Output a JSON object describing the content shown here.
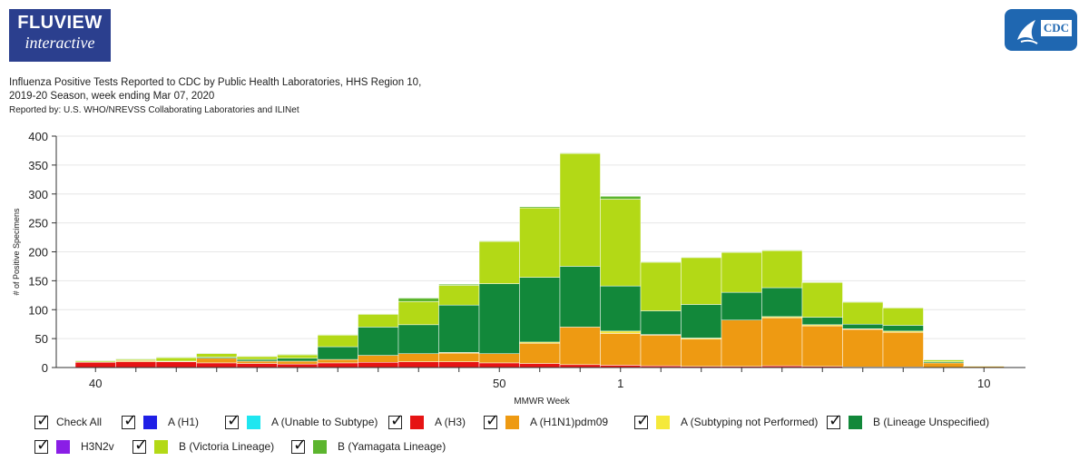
{
  "header": {
    "logo_top": "FLUVIEW",
    "logo_bottom": "interactive",
    "cdc_logo_text": "CDC"
  },
  "titles": {
    "line1": "Influenza Positive Tests Reported to CDC by Public Health Laboratories, HHS Region 10,",
    "line2": "2019-20 Season, week ending Mar 07, 2020",
    "line3": "Reported by: U.S. WHO/NREVSS Collaborating Laboratories and ILINet"
  },
  "legend": {
    "check_all": "Check All",
    "items": [
      {
        "label": "A (H1)",
        "color": "#1f1fe6"
      },
      {
        "label": "A (Unable to Subtype)",
        "color": "#1fe6f0"
      },
      {
        "label": "A (H3)",
        "color": "#e61414"
      },
      {
        "label": "A (H1N1)pdm09",
        "color": "#ee9a12"
      },
      {
        "label": "A (Subtyping not Performed)",
        "color": "#f5e93a"
      },
      {
        "label": "B (Lineage Unspecified)",
        "color": "#12883a"
      },
      {
        "label": "H3N2v",
        "color": "#8a1ee6"
      },
      {
        "label": "B (Victoria Lineage)",
        "color": "#b3d916"
      },
      {
        "label": "B (Yamagata Lineage)",
        "color": "#5cb52e"
      }
    ]
  },
  "chart_data": {
    "type": "bar",
    "stacked": true,
    "xlabel": "MMWR Week",
    "ylabel": "# of Positive Specimens",
    "ylim": [
      0,
      400
    ],
    "yticks": [
      0,
      50,
      100,
      150,
      200,
      250,
      300,
      350,
      400
    ],
    "categories": [
      "40",
      "41",
      "42",
      "43",
      "44",
      "45",
      "46",
      "47",
      "48",
      "49",
      "50",
      "51",
      "52",
      "1",
      "2",
      "3",
      "4",
      "5",
      "6",
      "7",
      "8",
      "9",
      "10"
    ],
    "xtick_labels": [
      "40",
      "50",
      "1",
      "10"
    ],
    "grid": true,
    "series": [
      {
        "name": "A (H3)",
        "color": "#e61414",
        "values": [
          9,
          10,
          10,
          8,
          7,
          6,
          8,
          9,
          10,
          10,
          8,
          7,
          5,
          4,
          3,
          2,
          2,
          3,
          2,
          1,
          1,
          0,
          0
        ]
      },
      {
        "name": "A (H1N1)pdm09",
        "color": "#ee9a12",
        "values": [
          0,
          2,
          1,
          8,
          4,
          5,
          6,
          12,
          14,
          15,
          16,
          35,
          65,
          55,
          53,
          47,
          80,
          83,
          70,
          65,
          60,
          8,
          2
        ]
      },
      {
        "name": "A (Subtyping not Performed)",
        "color": "#f5e93a",
        "values": [
          0,
          0,
          0,
          0,
          0,
          0,
          0,
          0,
          0,
          1,
          0,
          2,
          0,
          4,
          1,
          2,
          0,
          2,
          2,
          1,
          2,
          0,
          0
        ]
      },
      {
        "name": "B (Lineage Unspecified)",
        "color": "#12883a",
        "values": [
          0,
          0,
          0,
          2,
          3,
          5,
          22,
          49,
          50,
          82,
          121,
          112,
          105,
          78,
          41,
          58,
          48,
          50,
          13,
          8,
          10,
          2,
          0
        ]
      },
      {
        "name": "B (Victoria Lineage)",
        "color": "#b3d916",
        "values": [
          2,
          2,
          6,
          6,
          5,
          6,
          20,
          22,
          40,
          34,
          73,
          120,
          195,
          150,
          84,
          81,
          69,
          64,
          60,
          38,
          30,
          3,
          1
        ]
      },
      {
        "name": "B (Yamagata Lineage)",
        "color": "#5cb52e",
        "values": [
          1,
          1,
          1,
          1,
          1,
          1,
          1,
          1,
          6,
          2,
          1,
          2,
          1,
          5,
          1,
          1,
          1,
          1,
          1,
          1,
          1,
          1,
          0
        ]
      }
    ]
  }
}
